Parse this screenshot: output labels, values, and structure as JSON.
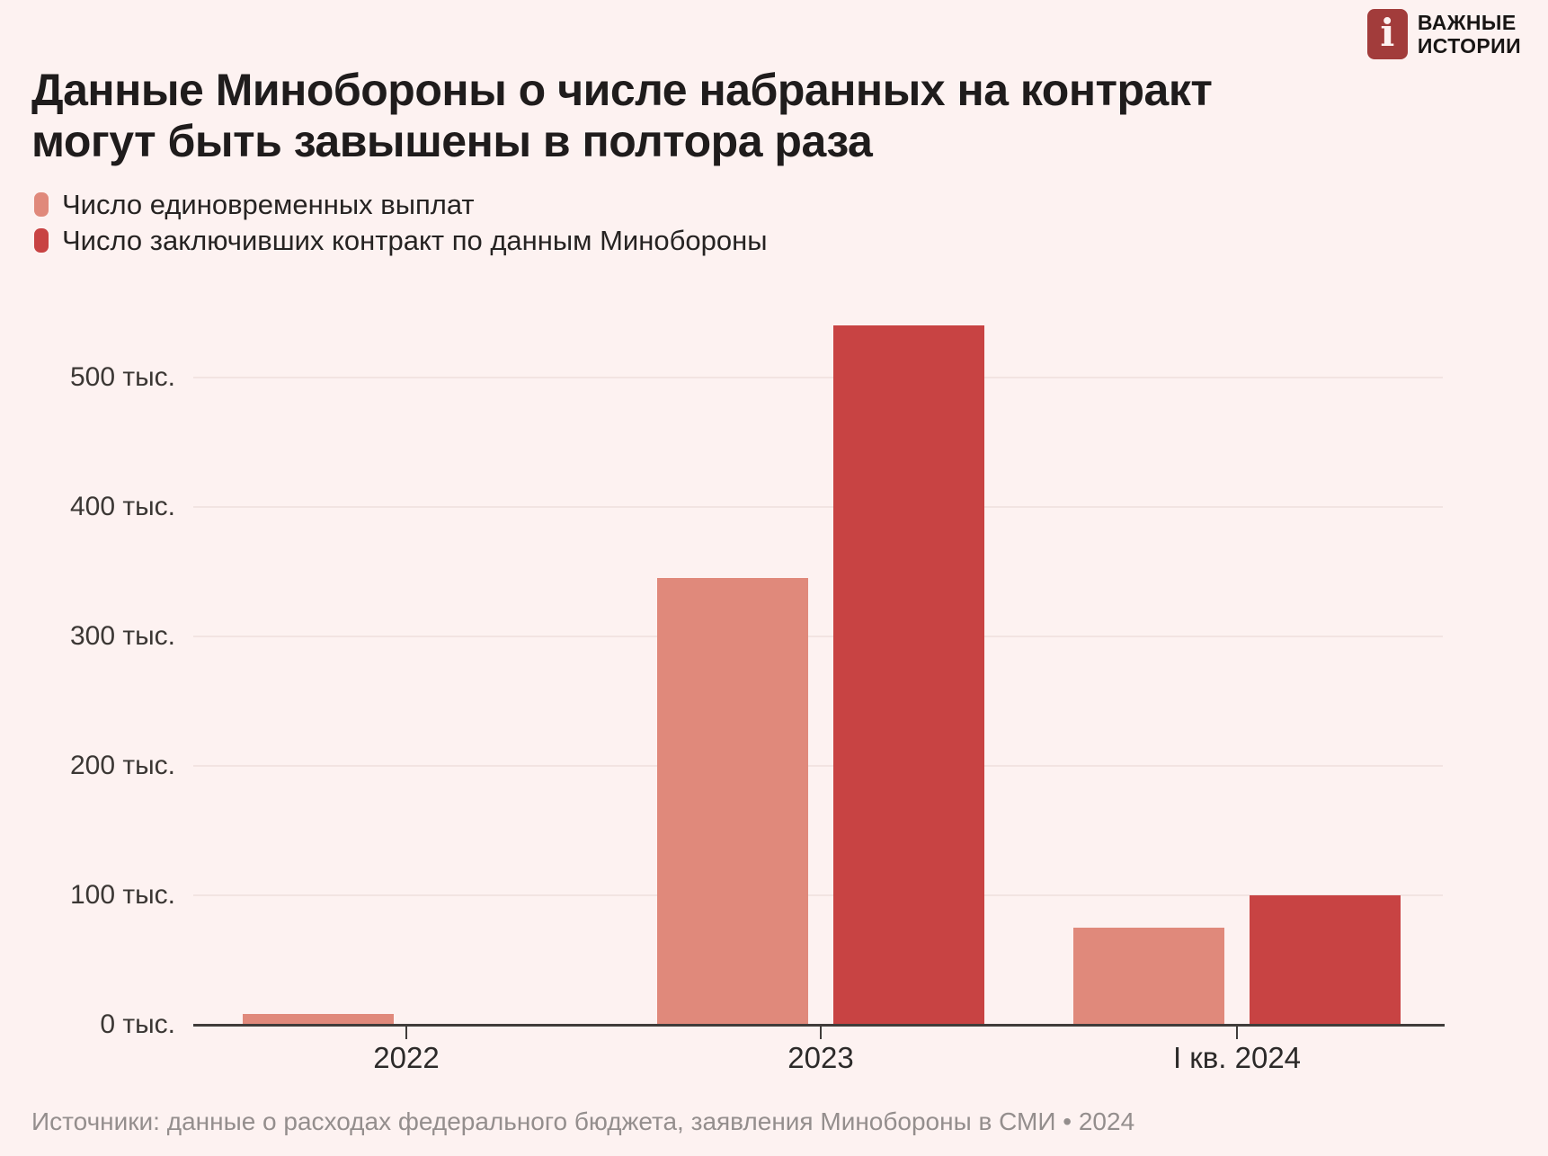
{
  "logo": {
    "icon_letter": "i",
    "line1": "ВАЖНЫЕ",
    "line2": "ИСТОРИИ"
  },
  "title": "Данные Минобороны о числе набранных на контракт могут быть завышены в полтора раза",
  "legend": [
    {
      "label": "Число единовременных выплат",
      "color": "#e0897b"
    },
    {
      "label": "Число заключивших контракт по данным Минобороны",
      "color": "#c84343"
    }
  ],
  "source": "Источники: данные о расходах федерального бюджета, заявления Минобороны в СМИ • 2024",
  "chart_data": {
    "type": "bar",
    "categories": [
      "2022",
      "2023",
      "I кв. 2024"
    ],
    "series": [
      {
        "name": "Число единовременных выплат",
        "color": "#e0897b",
        "values": [
          8,
          345,
          75
        ]
      },
      {
        "name": "Число заключивших контракт по данным Минобороны",
        "color": "#c84343",
        "values": [
          null,
          540,
          100
        ]
      }
    ],
    "yticks": [
      0,
      100,
      200,
      300,
      400,
      500
    ],
    "ytick_suffix": " тыс.",
    "ylim": [
      0,
      560
    ],
    "grid": true,
    "legend_position": "top-left",
    "unit": "тыс. человек"
  }
}
